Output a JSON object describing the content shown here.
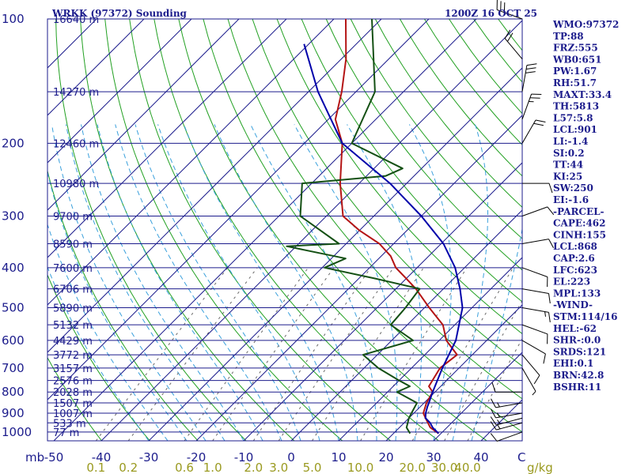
{
  "chart_data": {
    "type": "skew-t",
    "title": "WRKK (97372) Sounding",
    "valid_time": "1200Z 16 OCT 25",
    "pressure_axis_label": "mb",
    "temperature_axis_label": "C",
    "mixing_ratio_axis_label": "g/kg",
    "pressure_ticks": [
      100,
      200,
      300,
      400,
      500,
      600,
      700,
      800,
      900,
      1000
    ],
    "temperature_ticks": [
      -50,
      -40,
      -30,
      -20,
      -10,
      0,
      10,
      20,
      30,
      40
    ],
    "mixing_ratio_ticks": [
      "0.1",
      "0.2",
      "0.6",
      "1.0",
      "2.0",
      "3.0",
      "5.0",
      "10.0",
      "20.0",
      "30.0",
      "40.0"
    ],
    "height_levels": [
      {
        "p": 100,
        "label": "16640 m"
      },
      {
        "p": 150,
        "label": "14270 m"
      },
      {
        "p": 200,
        "label": "12460 m"
      },
      {
        "p": 250,
        "label": "10980 m"
      },
      {
        "p": 300,
        "label": "9700 m"
      },
      {
        "p": 350,
        "label": "8590 m"
      },
      {
        "p": 400,
        "label": "7600 m"
      },
      {
        "p": 450,
        "label": "6706 m"
      },
      {
        "p": 500,
        "label": "5890 m"
      },
      {
        "p": 550,
        "label": "5132 m"
      },
      {
        "p": 600,
        "label": "4429 m"
      },
      {
        "p": 650,
        "label": "3772 m"
      },
      {
        "p": 700,
        "label": "3157 m"
      },
      {
        "p": 750,
        "label": "2576 m"
      },
      {
        "p": 800,
        "label": "2028 m"
      },
      {
        "p": 850,
        "label": "1507 m"
      },
      {
        "p": 900,
        "label": "1007 m"
      },
      {
        "p": 950,
        "label": "533 m"
      },
      {
        "p": 1000,
        "label": "77 m"
      }
    ],
    "series": [
      {
        "name": "temperature",
        "color": "#b41414",
        "points": [
          [
            1008,
            29.5
          ],
          [
            975,
            26.5
          ],
          [
            925,
            23.5
          ],
          [
            900,
            22.0
          ],
          [
            850,
            20.5
          ],
          [
            800,
            19.5
          ],
          [
            775,
            17.5
          ],
          [
            700,
            16.0
          ],
          [
            650,
            16.8
          ],
          [
            600,
            11.5
          ],
          [
            550,
            7.5
          ],
          [
            500,
            1.0
          ],
          [
            450,
            -5.8
          ],
          [
            425,
            -10.0
          ],
          [
            400,
            -14.5
          ],
          [
            375,
            -18.0
          ],
          [
            350,
            -23.0
          ],
          [
            325,
            -30.0
          ],
          [
            300,
            -36.5
          ],
          [
            250,
            -44.0
          ],
          [
            200,
            -52.0
          ],
          [
            175,
            -58.5
          ],
          [
            150,
            -63.0
          ],
          [
            125,
            -69.0
          ],
          [
            100,
            -77.5
          ]
        ]
      },
      {
        "name": "dewpoint",
        "color": "#145014",
        "points": [
          [
            1008,
            23.5
          ],
          [
            975,
            21.5
          ],
          [
            925,
            20.0
          ],
          [
            900,
            19.5
          ],
          [
            850,
            18.5
          ],
          [
            800,
            12.0
          ],
          [
            775,
            13.5
          ],
          [
            750,
            10.0
          ],
          [
            700,
            3.0
          ],
          [
            650,
            -3.0
          ],
          [
            600,
            4.5
          ],
          [
            550,
            -3.5
          ],
          [
            500,
            -4.0
          ],
          [
            450,
            -5.0
          ],
          [
            425,
            -16.5
          ],
          [
            400,
            -29.5
          ],
          [
            380,
            -27.0
          ],
          [
            355,
            -42.0
          ],
          [
            350,
            -31.5
          ],
          [
            300,
            -45.5
          ],
          [
            250,
            -52.0
          ],
          [
            240,
            -36.0
          ],
          [
            230,
            -34.0
          ],
          [
            200,
            -50.0
          ],
          [
            150,
            -56.0
          ],
          [
            100,
            -72.0
          ]
        ]
      },
      {
        "name": "parcel",
        "color": "#0000aa",
        "points": [
          [
            1008,
            29.5
          ],
          [
            975,
            27.0
          ],
          [
            950,
            25.5
          ],
          [
            925,
            23.5
          ],
          [
            900,
            22.5
          ],
          [
            868,
            21.5
          ],
          [
            850,
            21.0
          ],
          [
            800,
            19.5
          ],
          [
            700,
            16.5
          ],
          [
            600,
            13.5
          ],
          [
            500,
            8.0
          ],
          [
            450,
            3.5
          ],
          [
            400,
            -2.0
          ],
          [
            350,
            -9.5
          ],
          [
            300,
            -20.0
          ],
          [
            250,
            -33.5
          ],
          [
            200,
            -52.0
          ],
          [
            150,
            -68.0
          ],
          [
            115,
            -81.0
          ]
        ]
      }
    ],
    "wind_barbs": [
      {
        "p": 1000,
        "dir": 250,
        "spd": 10
      },
      {
        "p": 950,
        "dir": 255,
        "spd": 15
      },
      {
        "p": 925,
        "dir": 255,
        "spd": 15
      },
      {
        "p": 900,
        "dir": 260,
        "spd": 15
      },
      {
        "p": 850,
        "dir": 260,
        "spd": 15
      },
      {
        "p": 800,
        "dir": 270,
        "spd": 10
      },
      {
        "p": 700,
        "dir": 150,
        "spd": 5
      },
      {
        "p": 650,
        "dir": 140,
        "spd": 10
      },
      {
        "p": 600,
        "dir": 120,
        "spd": 10
      },
      {
        "p": 550,
        "dir": 110,
        "spd": 10
      },
      {
        "p": 500,
        "dir": 100,
        "spd": 15
      },
      {
        "p": 450,
        "dir": 100,
        "spd": 10
      },
      {
        "p": 400,
        "dir": 110,
        "spd": 10
      },
      {
        "p": 350,
        "dir": 80,
        "spd": 10
      },
      {
        "p": 300,
        "dir": 70,
        "spd": 10
      },
      {
        "p": 250,
        "dir": 90,
        "spd": 10
      },
      {
        "p": 200,
        "dir": 30,
        "spd": 20
      },
      {
        "p": 175,
        "dir": 20,
        "spd": 25
      },
      {
        "p": 150,
        "dir": 10,
        "spd": 30
      },
      {
        "p": 125,
        "dir": 320,
        "spd": 20
      },
      {
        "p": 100,
        "dir": 290,
        "spd": 30
      }
    ],
    "indices": [
      "WMO:97372",
      "TP:88",
      "FRZ:555",
      "WB0:651",
      "PW:1.67",
      "RH:51.7",
      "MAXT:33.4",
      "TH:5813",
      "L57:5.8",
      "LCL:901",
      "LI:-1.4",
      "SI:0.2",
      "TT:44",
      "KI:25",
      "SW:250",
      "EI:-1.6",
      "-PARCEL-",
      "CAPE:462",
      "CINH:155",
      "LCL:868",
      "CAP:2.6",
      "LFC:623",
      "EL:223",
      "MPL:133",
      "-WIND-",
      "STM:114/16",
      "HEL:-62",
      "SHR-:0.0",
      "SRDS:121",
      "EHI:0.1",
      "BRN:42.8",
      "BSHR:11"
    ],
    "colors": {
      "isobar": "#1c1c8c",
      "isotherm": "#1c1c8c",
      "dry_adiabat": "#22a022",
      "moist_adiabat": "#3aa0dc",
      "mixing_ratio": "#6a6a6a",
      "mixing_ratio_label": "#9a9a20"
    }
  }
}
